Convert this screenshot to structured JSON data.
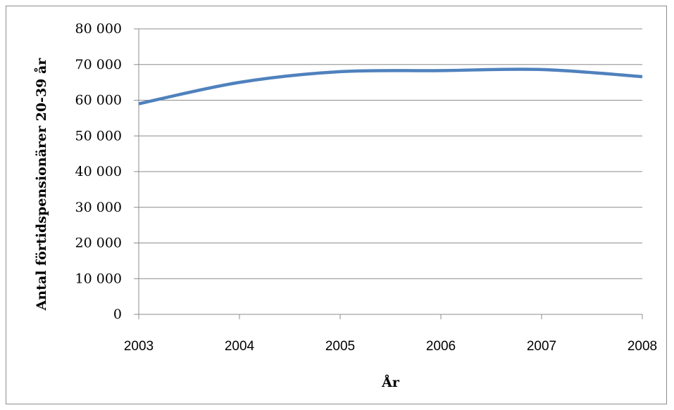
{
  "chart_data": {
    "type": "line",
    "title": "",
    "xlabel": "År",
    "ylabel": "Antal förtidspensionärer 20-39 år",
    "x": [
      2003,
      2004,
      2005,
      2006,
      2007,
      2008
    ],
    "x_tick_labels": [
      "2003",
      "2004",
      "2005",
      "2006",
      "2007",
      "2008"
    ],
    "series": [
      {
        "values": [
          59000,
          65000,
          68000,
          68300,
          68600,
          66600
        ]
      }
    ],
    "ylim": [
      0,
      80000
    ],
    "y_ticks": [
      0,
      10000,
      20000,
      30000,
      40000,
      50000,
      60000,
      70000,
      80000
    ],
    "y_tick_labels": [
      "0",
      "10 000",
      "20 000",
      "30 000",
      "40 000",
      "50 000",
      "60 000",
      "70 000",
      "80 000"
    ],
    "grid": "horizontal",
    "legend": "none",
    "line_color": "#4f81bd",
    "grid_color": "#8c8c8c"
  }
}
